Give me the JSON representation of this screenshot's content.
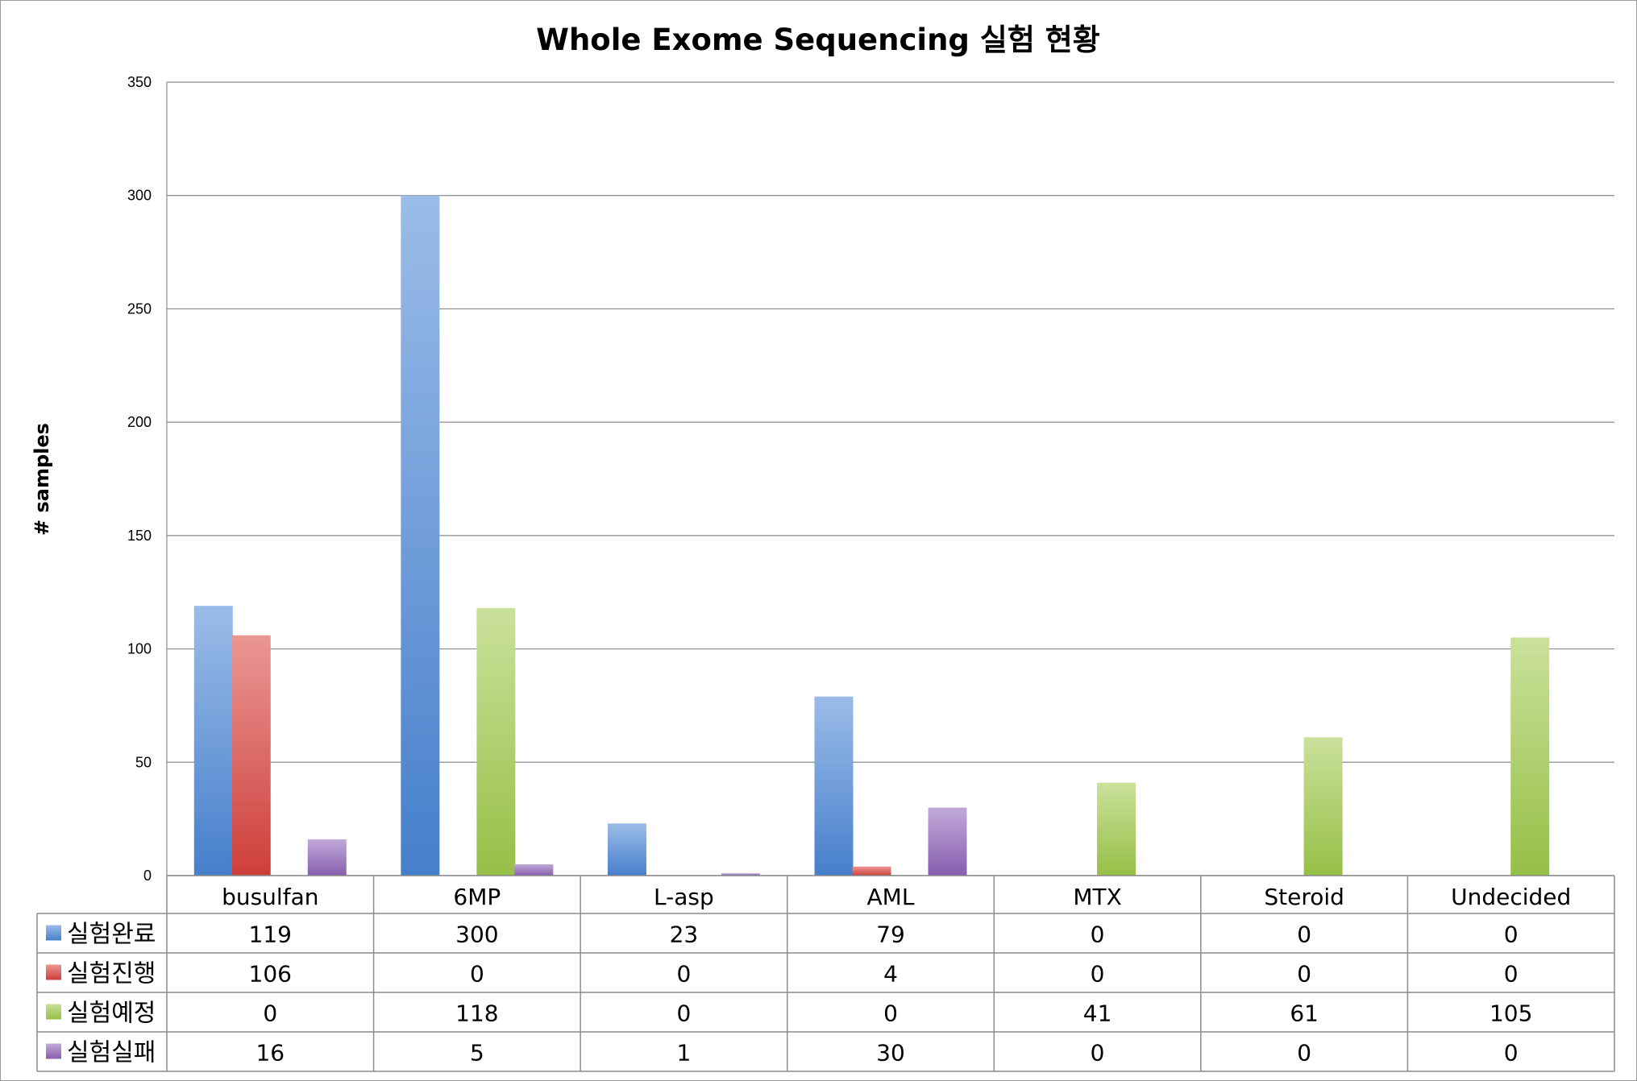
{
  "chart_data": {
    "type": "bar",
    "title": "Whole Exome Sequencing 실험 현황",
    "ylabel": "# samples",
    "ylim": [
      0,
      350
    ],
    "yticks": [
      0,
      50,
      100,
      150,
      200,
      250,
      300,
      350
    ],
    "grid": true,
    "legend": "data-table",
    "categories": [
      "busulfan",
      "6MP",
      "L-asp",
      "AML",
      "MTX",
      "Steroid",
      "Undecided"
    ],
    "series": [
      {
        "name": "실험완료",
        "color": "#4a86d6",
        "values": [
          119,
          300,
          23,
          79,
          0,
          0,
          0
        ]
      },
      {
        "name": "실험진행",
        "color": "#d9413d",
        "values": [
          106,
          0,
          0,
          4,
          0,
          0,
          0
        ]
      },
      {
        "name": "실험예정",
        "color": "#9ec94a",
        "values": [
          0,
          118,
          0,
          0,
          41,
          61,
          105
        ]
      },
      {
        "name": "실험실패",
        "color": "#8e63b8",
        "values": [
          16,
          5,
          1,
          30,
          0,
          0,
          0
        ]
      }
    ]
  }
}
